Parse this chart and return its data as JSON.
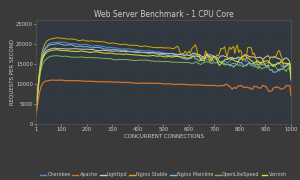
{
  "title": "Web Server Benchmark - 1 CPU Core",
  "xlabel": "CONCURRENT CONNECTIONS",
  "ylabel": "REQUESTS PER SECOND",
  "background_color": "#3a3a3a",
  "plot_bg_color": "#2e3440",
  "text_color": "#cccccc",
  "grid_color": "#505050",
  "title_fontsize": 5.5,
  "label_fontsize": 4.0,
  "tick_fontsize": 3.8,
  "legend_fontsize": 3.5,
  "x_ticks": [
    1,
    100,
    200,
    300,
    400,
    500,
    600,
    700,
    800,
    900,
    1000
  ],
  "ylim": [
    0,
    26000
  ],
  "y_ticks": [
    0,
    5000,
    10000,
    15000,
    20000,
    25000
  ],
  "series": {
    "Cherokee": {
      "color": "#5b8ec4",
      "lw": 0.7
    },
    "Apache": {
      "color": "#d4722a",
      "lw": 0.9
    },
    "Lighttpd": {
      "color": "#c8c8c8",
      "lw": 0.7
    },
    "Nginx Stable": {
      "color": "#d4aa00",
      "lw": 0.7
    },
    "Nginx Mainline": {
      "color": "#7ab8e0",
      "lw": 0.7
    },
    "OpenLiteSpeed": {
      "color": "#80b060",
      "lw": 0.7
    },
    "Varnish": {
      "color": "#e0e030",
      "lw": 0.7
    }
  }
}
